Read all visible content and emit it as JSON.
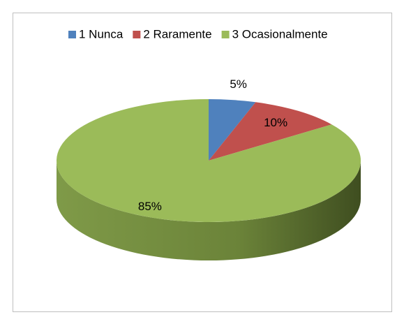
{
  "chart_data": {
    "type": "pie3d",
    "categories": [
      "1 Nunca",
      "2 Raramente",
      "3 Ocasionalmente"
    ],
    "values": [
      5,
      10,
      85
    ],
    "value_labels": [
      "5%",
      "10%",
      "85%"
    ],
    "colors": [
      "#4f81bd",
      "#c0504d",
      "#9bbb59"
    ],
    "legend": "top"
  }
}
